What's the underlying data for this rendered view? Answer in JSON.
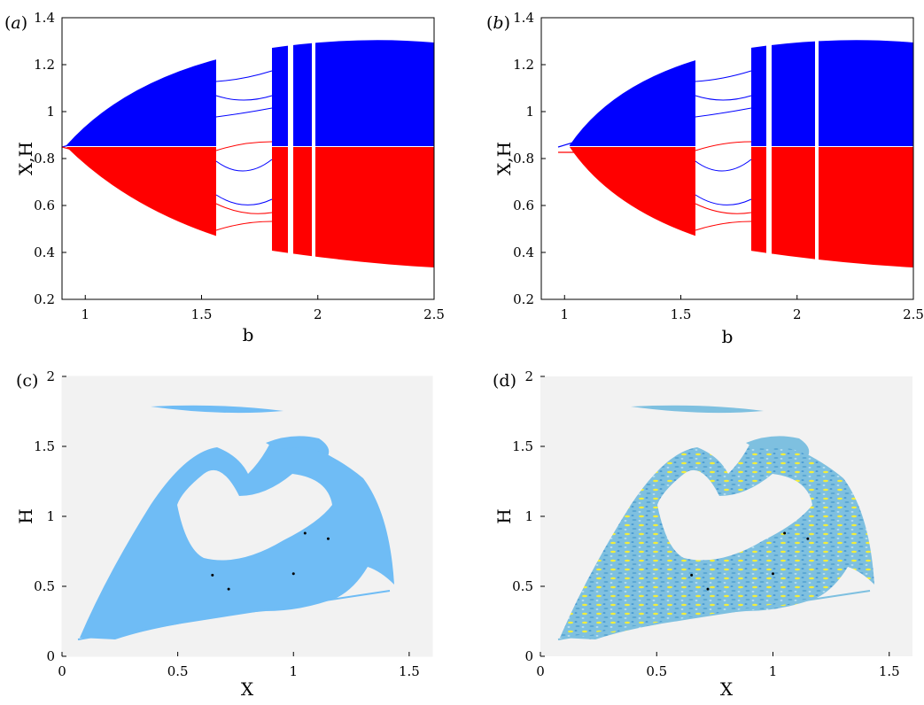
{
  "chart_data": [
    {
      "panel": "(a)",
      "type": "scatter",
      "xlabel": "b",
      "ylabel": "X,H",
      "xlim": [
        0.9,
        2.5
      ],
      "ylim": [
        0.2,
        1.4
      ],
      "xticks": [
        "1",
        "1.5",
        "2",
        "2.5"
      ],
      "yticks": [
        "0.2",
        "0.4",
        "0.6",
        "0.8",
        "1",
        "1.2",
        "1.4"
      ],
      "series": [
        {
          "color": "#0000ff",
          "values": [
            [
              0.9,
              0.84
            ],
            [
              1.05,
              0.86
            ],
            [
              1.2,
              0.96
            ],
            [
              1.5,
              1.1
            ],
            [
              2.0,
              1.22
            ],
            [
              2.5,
              1.29
            ]
          ]
        },
        {
          "color": "#ff0000",
          "values": [
            [
              0.9,
              0.84
            ],
            [
              1.05,
              0.81
            ],
            [
              1.2,
              0.72
            ],
            [
              1.5,
              0.56
            ],
            [
              2.0,
              0.42
            ],
            [
              2.5,
              0.33
            ]
          ]
        }
      ],
      "chaos_bands": [
        [
          1.39,
          1.56
        ],
        [
          1.8,
          2.5
        ]
      ],
      "periodic_windows": [
        [
          1.56,
          1.8
        ],
        [
          2.09,
          2.12
        ]
      ],
      "blue_lower_edge": 0.96,
      "red_upper_edge": 0.96
    },
    {
      "panel": "(b)",
      "type": "scatter",
      "xlabel": "b",
      "ylabel": "X,H",
      "xlim": [
        0.9,
        2.5
      ],
      "ylim": [
        0.2,
        1.4
      ],
      "xticks": [
        "1",
        "1.5",
        "2",
        "2.5"
      ],
      "yticks": [
        "0.2",
        "0.4",
        "0.6",
        "0.8",
        "1",
        "1.2",
        "1.4"
      ],
      "series": [
        {
          "color": "#0000ff",
          "values": [
            [
              0.93,
              0.84
            ],
            [
              1.05,
              0.86
            ],
            [
              1.2,
              0.96
            ],
            [
              1.5,
              1.1
            ],
            [
              2.0,
              1.22
            ],
            [
              2.5,
              1.29
            ]
          ]
        },
        {
          "color": "#ff0000",
          "values": [
            [
              0.93,
              0.83
            ],
            [
              1.05,
              0.81
            ],
            [
              1.2,
              0.72
            ],
            [
              1.5,
              0.56
            ],
            [
              2.0,
              0.42
            ],
            [
              2.5,
              0.33
            ]
          ]
        }
      ],
      "chaos_bands": [
        [
          1.39,
          1.56
        ],
        [
          1.8,
          2.5
        ]
      ],
      "periodic_windows": [
        [
          1.56,
          1.8
        ],
        [
          2.09,
          2.12
        ]
      ],
      "blue_lower_edge": 0.96,
      "red_upper_edge": 0.96
    },
    {
      "panel": "(c)",
      "type": "scatter",
      "xlabel": "X",
      "ylabel": "H",
      "xlim": [
        0,
        1.6
      ],
      "ylim": [
        0,
        2
      ],
      "xticks": [
        "0",
        "0.5",
        "1",
        "1.5"
      ],
      "yticks": [
        "0",
        "0.5",
        "1",
        "1.5",
        "2"
      ],
      "fill_color": "#6fbcf5",
      "background_color": "#f2f2f2",
      "points": [
        [
          1.05,
          0.88
        ],
        [
          1.15,
          0.84
        ],
        [
          0.65,
          0.58
        ],
        [
          0.72,
          0.48
        ],
        [
          1.0,
          0.59
        ]
      ]
    },
    {
      "panel": "(d)",
      "type": "scatter",
      "xlabel": "X",
      "ylabel": "H",
      "xlim": [
        0,
        1.6
      ],
      "ylim": [
        0,
        2
      ],
      "xticks": [
        "0",
        "0.5",
        "1",
        "1.5"
      ],
      "yticks": [
        "0",
        "0.5",
        "1",
        "1.5",
        "2"
      ],
      "fill_color": "#8cc7e6",
      "background_color": "#f2f2f2",
      "accent_colors": [
        "#ffff00",
        "#ff0000",
        "#000000"
      ],
      "points": [
        [
          1.05,
          0.88
        ],
        [
          1.15,
          0.84
        ],
        [
          0.65,
          0.58
        ],
        [
          0.72,
          0.48
        ],
        [
          1.0,
          0.59
        ]
      ]
    }
  ]
}
